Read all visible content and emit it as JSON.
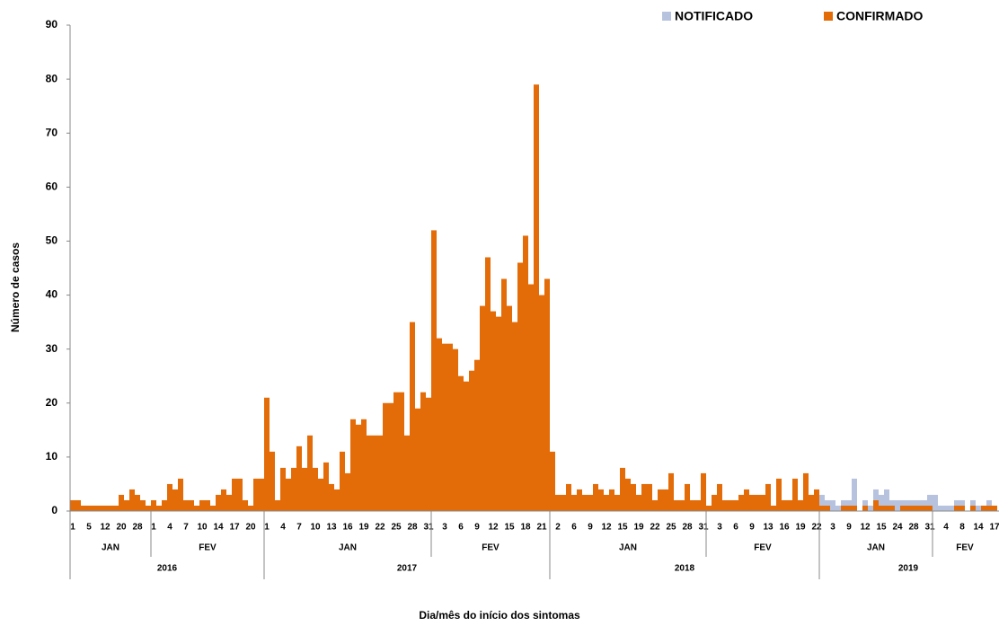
{
  "chart_data": {
    "type": "bar",
    "stacked": true,
    "legend": "top-right",
    "ylabel": "Número de casos",
    "xlabel": "Dia/mês do início dos sintomas",
    "ylim": [
      0,
      90
    ],
    "yticks": [
      0,
      10,
      20,
      30,
      40,
      50,
      60,
      70,
      80,
      90
    ],
    "years": [
      {
        "name": "2016",
        "months": [
          "JAN",
          "FEV"
        ]
      },
      {
        "name": "2017",
        "months": [
          "JAN",
          "FEV"
        ]
      },
      {
        "name": "2018",
        "months": [
          "JAN",
          "FEV"
        ]
      },
      {
        "name": "2019",
        "months": [
          "JAN",
          "FEV"
        ]
      }
    ],
    "categories": [
      "1",
      null,
      null,
      "5",
      null,
      null,
      "12",
      null,
      null,
      "20",
      null,
      null,
      "28",
      null,
      null,
      "1",
      null,
      null,
      "4",
      null,
      null,
      "7",
      null,
      null,
      "10",
      null,
      null,
      "14",
      null,
      null,
      "17",
      null,
      null,
      "20",
      null,
      null,
      "1",
      null,
      null,
      "4",
      null,
      null,
      "7",
      null,
      null,
      "10",
      null,
      null,
      "13",
      null,
      null,
      "16",
      null,
      null,
      "19",
      null,
      null,
      "22",
      null,
      null,
      "25",
      null,
      null,
      "28",
      null,
      null,
      "31",
      null,
      null,
      "3",
      null,
      null,
      "6",
      null,
      null,
      "9",
      null,
      null,
      "12",
      null,
      null,
      "15",
      null,
      null,
      "18",
      null,
      null,
      "21",
      null,
      null,
      "2",
      null,
      null,
      "6",
      null,
      null,
      "9",
      null,
      null,
      "12",
      null,
      null,
      "15",
      null,
      null,
      "19",
      null,
      null,
      "22",
      null,
      null,
      "25",
      null,
      null,
      "28",
      null,
      null,
      "31",
      null,
      null,
      "3",
      null,
      null,
      "6",
      null,
      null,
      "9",
      null,
      null,
      "13",
      null,
      null,
      "16",
      null,
      null,
      "19",
      null,
      null,
      "22",
      null,
      null,
      "3",
      null,
      null,
      "9",
      null,
      null,
      "12",
      null,
      null,
      "15",
      null,
      null,
      "24",
      null,
      null,
      "28",
      null,
      null,
      "31",
      null,
      null,
      "4",
      null,
      null,
      "8",
      null,
      null,
      "14",
      null,
      null,
      "17"
    ],
    "series": [
      {
        "name": "CONFIRMADO",
        "color": "#e36c09",
        "values": [
          2,
          2,
          1,
          1,
          1,
          1,
          1,
          1,
          1,
          3,
          2,
          4,
          3,
          2,
          1,
          2,
          1,
          2,
          5,
          4,
          6,
          2,
          2,
          1,
          2,
          2,
          1,
          3,
          4,
          3,
          6,
          6,
          2,
          1,
          6,
          6,
          21,
          11,
          2,
          8,
          6,
          8,
          12,
          8,
          14,
          8,
          6,
          9,
          5,
          4,
          11,
          7,
          17,
          16,
          17,
          14,
          14,
          14,
          20,
          20,
          22,
          22,
          14,
          35,
          19,
          22,
          21,
          52,
          32,
          31,
          31,
          30,
          25,
          24,
          26,
          28,
          38,
          47,
          37,
          36,
          43,
          38,
          35,
          46,
          51,
          42,
          79,
          40,
          43,
          11,
          3,
          3,
          5,
          3,
          4,
          3,
          3,
          5,
          4,
          3,
          4,
          3,
          8,
          6,
          5,
          3,
          5,
          5,
          2,
          4,
          4,
          7,
          2,
          2,
          5,
          2,
          2,
          7,
          1,
          3,
          5,
          2,
          2,
          2,
          3,
          4,
          3,
          3,
          3,
          5,
          1,
          6,
          2,
          2,
          6,
          2,
          7,
          3,
          4,
          1,
          1,
          0,
          0,
          1,
          1,
          1,
          0,
          1,
          0,
          2,
          1,
          1,
          1,
          0,
          1,
          1,
          1,
          1,
          1,
          1,
          0,
          0,
          0,
          0,
          1,
          1,
          0,
          1,
          0,
          1,
          1,
          1
        ]
      },
      {
        "name": "NOTIFICADO",
        "color": "#b7c3de",
        "values": [
          0,
          0,
          0,
          0,
          0,
          0,
          0,
          0,
          0,
          0,
          0,
          0,
          0,
          0,
          0,
          0,
          0,
          0,
          0,
          0,
          0,
          0,
          0,
          0,
          0,
          0,
          0,
          0,
          0,
          0,
          0,
          0,
          0,
          0,
          0,
          0,
          0,
          0,
          0,
          0,
          0,
          0,
          0,
          0,
          0,
          0,
          0,
          0,
          0,
          0,
          0,
          0,
          0,
          0,
          0,
          0,
          0,
          0,
          0,
          0,
          0,
          0,
          0,
          0,
          0,
          0,
          0,
          0,
          0,
          0,
          0,
          0,
          0,
          0,
          0,
          0,
          0,
          0,
          0,
          0,
          0,
          0,
          0,
          0,
          0,
          0,
          0,
          0,
          0,
          0,
          0,
          0,
          0,
          0,
          0,
          0,
          0,
          0,
          0,
          0,
          0,
          0,
          0,
          0,
          0,
          0,
          0,
          0,
          0,
          0,
          0,
          0,
          0,
          0,
          0,
          0,
          0,
          0,
          0,
          0,
          0,
          0,
          0,
          0,
          0,
          0,
          0,
          0,
          0,
          0,
          0,
          0,
          0,
          0,
          0,
          0,
          0,
          0,
          0,
          2,
          1,
          2,
          1,
          1,
          1,
          5,
          0,
          1,
          1,
          2,
          2,
          3,
          1,
          2,
          1,
          1,
          1,
          1,
          1,
          2,
          3,
          1,
          1,
          1,
          1,
          1,
          0,
          1,
          1,
          0,
          1,
          0
        ]
      }
    ]
  }
}
